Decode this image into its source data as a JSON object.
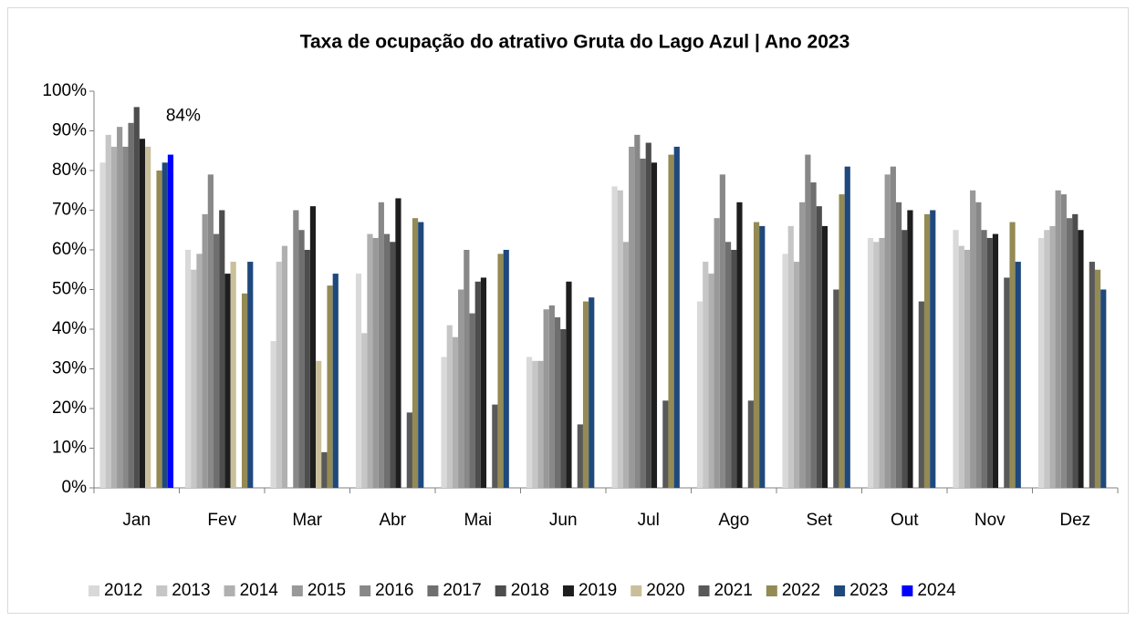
{
  "chart_data": {
    "type": "bar",
    "title": "Taxa de ocupação do atrativo Gruta do Lago Azul | Ano 2023",
    "categories": [
      "Jan",
      "Fev",
      "Mar",
      "Abr",
      "Mai",
      "Jun",
      "Jul",
      "Ago",
      "Set",
      "Out",
      "Nov",
      "Dez"
    ],
    "ylim": [
      0,
      100
    ],
    "yticks": [
      {
        "value": 0,
        "label": "0%"
      },
      {
        "value": 10,
        "label": "10%"
      },
      {
        "value": 20,
        "label": "20%"
      },
      {
        "value": 30,
        "label": "30%"
      },
      {
        "value": 40,
        "label": "40%"
      },
      {
        "value": 50,
        "label": "50%"
      },
      {
        "value": 60,
        "label": "60%"
      },
      {
        "value": 70,
        "label": "70%"
      },
      {
        "value": 80,
        "label": "80%"
      },
      {
        "value": 90,
        "label": "90%"
      },
      {
        "value": 100,
        "label": "100%"
      }
    ],
    "legend": "bottom",
    "series": [
      {
        "name": "2012",
        "color": "#d9d9d9",
        "values": [
          82,
          60,
          37,
          54,
          33,
          33,
          76,
          47,
          59,
          63,
          65,
          63
        ]
      },
      {
        "name": "2013",
        "color": "#c6c6c6",
        "values": [
          89,
          55,
          57,
          39,
          41,
          32,
          75,
          57,
          66,
          62,
          61,
          65
        ]
      },
      {
        "name": "2014",
        "color": "#b0b0b0",
        "values": [
          86,
          59,
          61,
          64,
          38,
          32,
          62,
          54,
          57,
          63,
          60,
          66
        ]
      },
      {
        "name": "2015",
        "color": "#999999",
        "values": [
          91,
          69,
          null,
          63,
          50,
          45,
          86,
          68,
          72,
          79,
          75,
          75
        ]
      },
      {
        "name": "2016",
        "color": "#888888",
        "values": [
          86,
          79,
          70,
          72,
          60,
          46,
          89,
          79,
          84,
          81,
          72,
          74
        ]
      },
      {
        "name": "2017",
        "color": "#6f6f6f",
        "values": [
          92,
          64,
          65,
          64,
          44,
          43,
          83,
          62,
          77,
          72,
          65,
          68
        ]
      },
      {
        "name": "2018",
        "color": "#4d4d4d",
        "values": [
          96,
          70,
          60,
          62,
          52,
          40,
          87,
          60,
          71,
          65,
          63,
          69
        ]
      },
      {
        "name": "2019",
        "color": "#1e1e1e",
        "values": [
          88,
          54,
          71,
          73,
          53,
          52,
          82,
          72,
          66,
          70,
          64,
          65
        ]
      },
      {
        "name": "2020",
        "color": "#c9bf9a",
        "values": [
          86,
          57,
          32,
          null,
          null,
          null,
          null,
          null,
          null,
          null,
          null,
          null
        ]
      },
      {
        "name": "2021",
        "color": "#595959",
        "values": [
          null,
          null,
          9,
          19,
          21,
          16,
          22,
          22,
          50,
          47,
          53,
          57
        ]
      },
      {
        "name": "2022",
        "color": "#948a54",
        "values": [
          80,
          49,
          51,
          68,
          59,
          47,
          84,
          67,
          74,
          69,
          67,
          55
        ]
      },
      {
        "name": "2023",
        "color": "#1f497d",
        "values": [
          82,
          57,
          54,
          67,
          60,
          48,
          86,
          66,
          81,
          70,
          57,
          50
        ]
      },
      {
        "name": "2024",
        "color": "#0000ff",
        "values": [
          84,
          null,
          null,
          null,
          null,
          null,
          null,
          null,
          null,
          null,
          null,
          null
        ],
        "value_labels": [
          "84%",
          null,
          null,
          null,
          null,
          null,
          null,
          null,
          null,
          null,
          null,
          null
        ]
      }
    ]
  }
}
